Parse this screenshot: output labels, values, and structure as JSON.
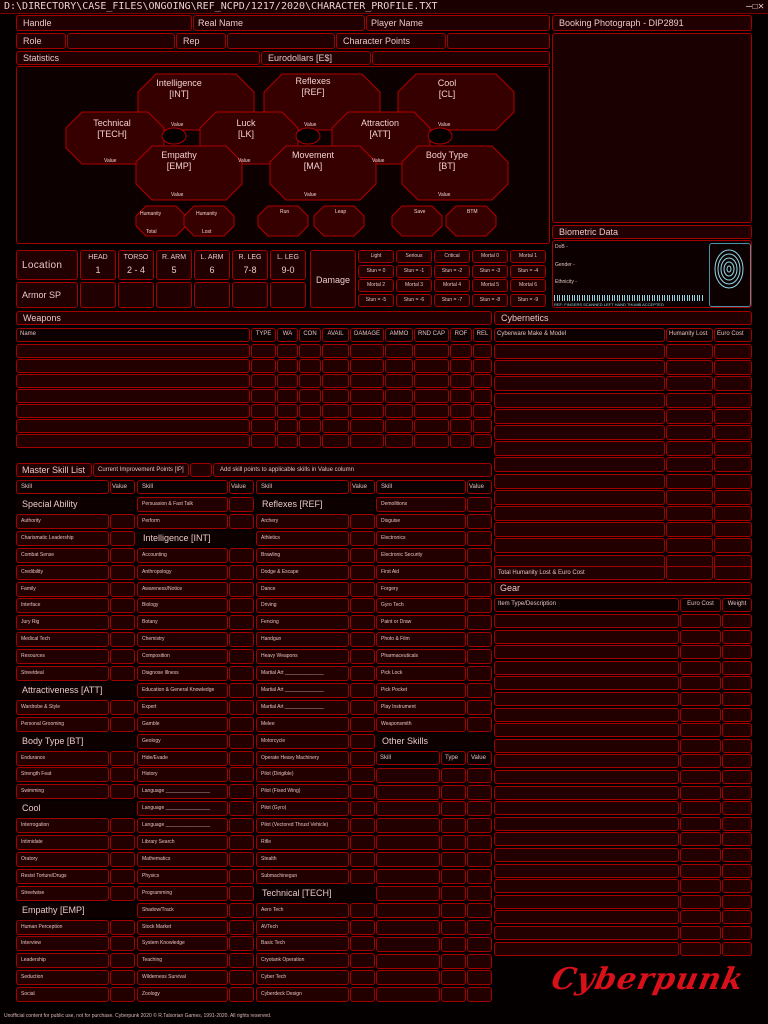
{
  "title_bar": {
    "path": "D:\\DIRECTORY\\CASE_FILES\\ONGOING\\REF_NCPD/1217/2020\\CHARACTER_PROFILE.TXT",
    "controls": "—☐✕"
  },
  "header": {
    "handle": "Handle",
    "real_name": "Real Name",
    "player_name": "Player Name",
    "role": "Role",
    "rep": "Rep",
    "character_points": "Character Points",
    "statistics": "Statistics",
    "eurodollars": "Eurodollars [E$]"
  },
  "photo": {
    "label": "Booking Photograph - DIP2891"
  },
  "biometric": {
    "label": "Biometric Data",
    "dob": "DoB -",
    "gender": "Gender -",
    "ethnicity": "Ethnicity -",
    "barcode_text": "REF: FINGERS SCANNED  LEFT HAND THUMB ACCEPTED"
  },
  "stats": [
    {
      "name": "Intelligence",
      "abbr": "[INT]",
      "value_label": "Value"
    },
    {
      "name": "Reflexes",
      "abbr": "[REF]",
      "value_label": "Value"
    },
    {
      "name": "Cool",
      "abbr": "[CL]",
      "value_label": "Value"
    },
    {
      "name": "Technical",
      "abbr": "[TECH]",
      "value_label": "Value"
    },
    {
      "name": "Luck",
      "abbr": "[LK]",
      "value_label": "Value"
    },
    {
      "name": "Attraction",
      "abbr": "[ATT]",
      "value_label": "Value"
    },
    {
      "name": "Empathy",
      "abbr": "[EMP]",
      "value_label": "Value"
    },
    {
      "name": "Movement",
      "abbr": "[MA]",
      "value_label": "Value"
    },
    {
      "name": "Body Type",
      "abbr": "[BT]",
      "value_label": "Value"
    }
  ],
  "sub_stats": {
    "humanity": "Humanity",
    "total": "Total",
    "lost": "Lost",
    "run": "Run",
    "leap": "Leap",
    "save": "Save",
    "btm": "BTM"
  },
  "location": {
    "label": "Location",
    "armor": "Armor SP",
    "parts": [
      {
        "name": "HEAD",
        "range": "1"
      },
      {
        "name": "TORSO",
        "range": "2 - 4"
      },
      {
        "name": "R. ARM",
        "range": "5"
      },
      {
        "name": "L. ARM",
        "range": "6"
      },
      {
        "name": "R. LEG",
        "range": "7-8"
      },
      {
        "name": "L. LEG",
        "range": "9-0"
      }
    ]
  },
  "damage": {
    "label": "Damage",
    "levels": [
      "Light",
      "Serious",
      "Critical",
      "Mortal 0",
      "Mortal 1"
    ],
    "stun_row1": [
      "Stun = 0",
      "Stun = -1",
      "Stun = -2",
      "Stun = -3",
      "Stun = -4"
    ],
    "levels2": [
      "Mortal 2",
      "Mortal 3",
      "Mortal 4",
      "Mortal 5",
      "Mortal 6"
    ],
    "stun_row2": [
      "Stun = -5",
      "Stun = -6",
      "Stun = -7",
      "Stun = -8",
      "Stun = -9"
    ]
  },
  "weapons": {
    "label": "Weapons",
    "columns": [
      "Name",
      "TYPE",
      "WA",
      "CON",
      "AVAIL",
      "DAMAGE",
      "AMMO",
      "RND CAP",
      "ROF",
      "REL"
    ]
  },
  "cybernetics": {
    "label": "Cybernetics",
    "columns": [
      "Cyberware Make & Model",
      "Humanity Lost",
      "Euro Cost"
    ],
    "total": "Total Humanity Lost & Euro Cost"
  },
  "gear": {
    "label": "Gear",
    "columns": [
      "Item Type/Description",
      "Euro Cost",
      "Weight"
    ]
  },
  "skills": {
    "label": "Master Skill List",
    "ip": "Current Improvement Points [IP]",
    "note": "Add skill points to applicable skills in Value column",
    "col_skill": "Skill",
    "col_value": "Value",
    "col1": [
      {
        "h": "Special Ability"
      },
      "Authority",
      "Charismatic Leadership",
      "Combat Sense",
      "Credibility",
      "Family",
      "Interface",
      "Jury Rig",
      "Medical Tech",
      "Resources",
      "Streetdeal",
      {
        "h": "Attractiveness [ATT]"
      },
      "Wardrobe & Style",
      "Personal Grooming",
      {
        "h": "Body Type [BT]"
      },
      "Endurance",
      "Strength Feat",
      "Swimming",
      {
        "h": "Cool"
      },
      "Interrogation",
      "Intimidate",
      "Oratory",
      "Resist Torture/Drugs",
      "Streetwise",
      {
        "h": "Empathy [EMP]"
      },
      "Human Perception",
      "Interview",
      "Leadership",
      "Seduction",
      "Social"
    ],
    "col2": [
      "Persuasion & Fast Talk",
      "Perform",
      {
        "h": "Intelligence [INT]"
      },
      "Accounting",
      "Anthropology",
      "Awareness/Notice",
      "Biology",
      "Botany",
      "Chemistry",
      "Composition",
      "Diagnose Illness",
      "Education & General Knowledge",
      "Expert",
      "Gamble",
      "Geology",
      "Hide/Evade",
      "History",
      "Language ________________",
      "Language ________________",
      "Language ________________",
      "Library Search",
      "Mathematics",
      "Physics",
      "Programming",
      "Shadow/Track",
      "Stock Market",
      "System Knowledge",
      "Teaching",
      "Wilderness Survival",
      "Zoology"
    ],
    "col3": [
      {
        "h": "Reflexes [REF]"
      },
      "Archery",
      "Athletics",
      "Brawling",
      "Dodge & Escape",
      "Dance",
      "Driving",
      "Fencing",
      "Handgun",
      "Heavy Weapons",
      "Martial Art ______________",
      "Martial Art ______________",
      "Martial Art ______________",
      "Melee",
      "Motorcycle",
      "Operate Heavy Machinery",
      "Pilot (Dirigible)",
      "Pilot (Fixed Wing)",
      "Pilot (Gyro)",
      "Pilot (Vectored Thrust Vehicle)",
      "Rifle",
      "Stealth",
      "Submachinegun",
      {
        "h": "Technical [TECH]"
      },
      "Aero Tech",
      "AVTech",
      "Basic Tech",
      "Cryotank Operation",
      "Cyber Tech",
      "Cyberdeck Design"
    ],
    "col4": [
      "Demolitions",
      "Disguise",
      "Electronics",
      "Electronic Security",
      "First Aid",
      "Forgery",
      "Gyro Tech",
      "Paint or Draw",
      "Photo & Film",
      "Pharmaceuticals",
      "Pick Lock",
      "Pick Pocket",
      "Play Instrument",
      "Weaponsmith"
    ],
    "other_label": "Other Skills",
    "other_cols": [
      "Skill",
      "Type",
      "Value"
    ]
  },
  "footer": "Unofficial content for public use, not for purchase. Cyberpunk 2020 © R.Talsorian Games, 1991-2020. All rights reserved.",
  "logo": "Cyberpunk",
  "colors": {
    "border": "#a30000",
    "bg": "#050000",
    "cell": "#220000",
    "logo": "#d8101a"
  }
}
